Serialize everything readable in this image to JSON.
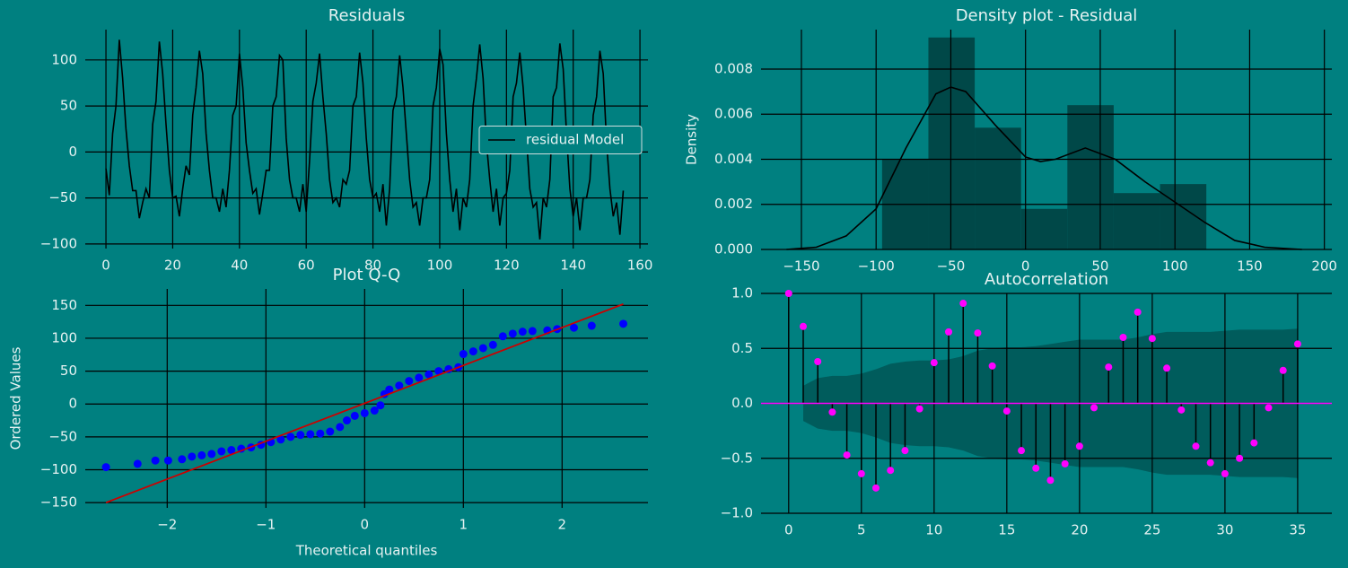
{
  "chart_data": [
    {
      "type": "line",
      "title": "Residuals",
      "x": [
        0,
        1,
        2,
        3,
        4,
        5,
        6,
        7,
        8,
        9,
        10,
        11,
        12,
        13,
        14,
        15,
        16,
        17,
        18,
        19,
        20,
        21,
        22,
        23,
        24,
        25,
        26,
        27,
        28,
        29,
        30,
        31,
        32,
        33,
        34,
        35,
        36,
        37,
        38,
        39,
        40,
        41,
        42,
        43,
        44,
        45,
        46,
        47,
        48,
        49,
        50,
        51,
        52,
        53,
        54,
        55,
        56,
        57,
        58,
        59,
        60,
        61,
        62,
        63,
        64,
        65,
        66,
        67,
        68,
        69,
        70,
        71,
        72,
        73,
        74,
        75,
        76,
        77,
        78,
        79,
        80,
        81,
        82,
        83,
        84,
        85,
        86,
        87,
        88,
        89,
        90,
        91,
        92,
        93,
        94,
        95,
        96,
        97,
        98,
        99,
        100,
        101,
        102,
        103,
        104,
        105,
        106,
        107,
        108,
        109,
        110,
        111,
        112,
        113,
        114,
        115,
        116,
        117,
        118,
        119,
        120,
        121,
        122,
        123,
        124,
        125,
        126,
        127,
        128,
        129,
        130,
        131,
        132,
        133,
        134,
        135,
        136,
        137,
        138,
        139,
        140,
        141,
        142,
        143,
        144,
        145,
        146,
        147,
        148,
        149,
        150,
        151,
        152,
        153,
        154,
        155
      ],
      "series": [
        {
          "name": "residual Model",
          "color": "#000000",
          "values": [
            -18,
            -47,
            20,
            50,
            122,
            80,
            25,
            -15,
            -42,
            -42,
            -72,
            -55,
            -40,
            -50,
            30,
            55,
            120,
            85,
            30,
            -20,
            -50,
            -48,
            -70,
            -40,
            -15,
            -25,
            40,
            70,
            110,
            85,
            20,
            -20,
            -50,
            -50,
            -65,
            -40,
            -60,
            -20,
            40,
            50,
            107,
            70,
            10,
            -20,
            -45,
            -40,
            -68,
            -45,
            -20,
            -20,
            50,
            60,
            105,
            100,
            15,
            -30,
            -50,
            -50,
            -65,
            -35,
            -65,
            -10,
            55,
            75,
            107,
            60,
            20,
            -30,
            -55,
            -50,
            -60,
            -30,
            -35,
            -20,
            50,
            60,
            108,
            75,
            15,
            -30,
            -50,
            -45,
            -65,
            -35,
            -80,
            -40,
            45,
            60,
            105,
            70,
            20,
            -30,
            -60,
            -55,
            -80,
            -50,
            -50,
            -30,
            50,
            70,
            112,
            95,
            20,
            -30,
            -65,
            -40,
            -85,
            -50,
            -60,
            -30,
            50,
            80,
            117,
            80,
            10,
            -30,
            -65,
            -40,
            -80,
            -50,
            -45,
            -20,
            60,
            75,
            108,
            70,
            15,
            -40,
            -60,
            -55,
            -95,
            -50,
            -60,
            -30,
            60,
            70,
            118,
            90,
            20,
            -40,
            -70,
            -50,
            -85,
            -50,
            -50,
            -30,
            40,
            60,
            110,
            85,
            10,
            -40,
            -70,
            -55,
            -90,
            -42
          ]
        }
      ],
      "xlim": [
        -6.2,
        162.4
      ],
      "ylim": [
        -105,
        133
      ],
      "xticks": [
        0,
        20,
        40,
        60,
        80,
        100,
        120,
        140,
        160
      ],
      "yticks": [
        {
          "value": -100,
          "label": "−100"
        },
        {
          "value": -50,
          "label": "−50"
        },
        0,
        50,
        100
      ],
      "grid": true,
      "legend": "center right"
    },
    {
      "type": "histogram",
      "title": "Density plot - Residual",
      "ylabel": "Density",
      "bins": [
        -96,
        -65,
        -34,
        -3,
        28,
        59,
        90,
        121
      ],
      "values": [
        0.004,
        0.0094,
        0.0054,
        0.0018,
        0.0064,
        0.0025,
        0.0029
      ],
      "color": "#004848",
      "kde": {
        "color": "#000000",
        "x": [
          -160,
          -140,
          -120,
          -100,
          -80,
          -60,
          -50,
          -40,
          -20,
          0,
          10,
          20,
          40,
          60,
          80,
          100,
          120,
          140,
          160,
          185
        ],
        "values": [
          0,
          0.0001,
          0.0006,
          0.0018,
          0.0045,
          0.0069,
          0.0072,
          0.007,
          0.0055,
          0.0041,
          0.0039,
          0.004,
          0.0045,
          0.004,
          0.003,
          0.0021,
          0.0012,
          0.0004,
          0.0001,
          0
        ]
      },
      "xlim": [
        -177,
        205
      ],
      "ylim": [
        0,
        0.00975
      ],
      "xticks": [
        {
          "value": -150,
          "label": "−150"
        },
        {
          "value": -100,
          "label": "−100"
        },
        {
          "value": -50,
          "label": "−50"
        },
        0,
        50,
        100,
        150,
        200
      ],
      "yticks": [
        {
          "value": 0,
          "label": "0.000"
        },
        {
          "value": 0.002,
          "label": "0.002"
        },
        {
          "value": 0.004,
          "label": "0.004"
        },
        {
          "value": 0.006,
          "label": "0.006"
        },
        {
          "value": 0.008,
          "label": "0.008"
        }
      ],
      "grid": true
    },
    {
      "type": "scatter",
      "title": "Plot Q-Q",
      "xlabel": "Theoretical quantiles",
      "ylabel": "Ordered Values",
      "points": {
        "color": "#0000ff",
        "x": [
          -2.62,
          -2.3,
          -2.12,
          -1.99,
          -1.85,
          -1.75,
          -1.65,
          -1.55,
          -1.45,
          -1.35,
          -1.25,
          -1.15,
          -1.05,
          -0.95,
          -0.85,
          -0.75,
          -0.65,
          -0.55,
          -0.45,
          -0.35,
          -0.25,
          -0.18,
          -0.1,
          0,
          0.1,
          0.16,
          0.2,
          0.25,
          0.35,
          0.45,
          0.55,
          0.65,
          0.75,
          0.85,
          0.95,
          1.0,
          1.1,
          1.2,
          1.3,
          1.4,
          1.5,
          1.6,
          1.7,
          1.85,
          1.95,
          2.12,
          2.3,
          2.62
        ],
        "values": [
          -96,
          -91,
          -86,
          -86,
          -84,
          -80,
          -78,
          -76,
          -72,
          -70,
          -68,
          -66,
          -62,
          -58,
          -54,
          -50,
          -47,
          -46,
          -45,
          -42,
          -35,
          -25,
          -18,
          -14,
          -10,
          -2,
          15,
          22,
          28,
          35,
          40,
          45,
          50,
          53,
          56,
          76,
          80,
          85,
          90,
          103,
          107,
          110,
          111,
          112,
          114,
          116,
          119,
          122
        ]
      },
      "fit_line": {
        "color": "#cc0000",
        "x": [
          -2.62,
          2.62
        ],
        "values": [
          -150,
          152
        ]
      },
      "xlim": [
        -2.83,
        2.87
      ],
      "ylim": [
        -158,
        175
      ],
      "xticks": [
        {
          "value": -2,
          "label": "−2"
        },
        {
          "value": -1,
          "label": "−1"
        },
        0,
        1,
        2
      ],
      "yticks": [
        {
          "value": -150,
          "label": "−150"
        },
        {
          "value": -100,
          "label": "−100"
        },
        {
          "value": -50,
          "label": "−50"
        },
        0,
        50,
        100,
        150
      ],
      "grid": true
    },
    {
      "type": "stem",
      "title": "Autocorrelation",
      "x": [
        0,
        1,
        2,
        3,
        4,
        5,
        6,
        7,
        8,
        9,
        10,
        11,
        12,
        13,
        14,
        15,
        16,
        17,
        18,
        19,
        20,
        21,
        22,
        23,
        24,
        25,
        26,
        27,
        28,
        29,
        30,
        31,
        32,
        33,
        34,
        35
      ],
      "values": [
        1.0,
        0.7,
        0.38,
        -0.08,
        -0.47,
        -0.64,
        -0.77,
        -0.61,
        -0.43,
        -0.05,
        0.37,
        0.65,
        0.91,
        0.64,
        0.34,
        -0.07,
        -0.43,
        -0.59,
        -0.7,
        -0.55,
        -0.39,
        -0.04,
        0.33,
        0.6,
        0.83,
        0.59,
        0.32,
        -0.06,
        -0.39,
        -0.54,
        -0.64,
        -0.5,
        -0.36,
        -0.04,
        0.3,
        0.54
      ],
      "band_upper": [
        null,
        0.16,
        0.23,
        0.25,
        0.25,
        0.27,
        0.31,
        0.36,
        0.38,
        0.39,
        0.39,
        0.4,
        0.43,
        0.48,
        0.5,
        0.51,
        0.51,
        0.52,
        0.54,
        0.56,
        0.58,
        0.58,
        0.58,
        0.58,
        0.6,
        0.63,
        0.65,
        0.65,
        0.65,
        0.65,
        0.66,
        0.67,
        0.67,
        0.67,
        0.67,
        0.68
      ],
      "band_lower": [
        null,
        -0.16,
        -0.23,
        -0.25,
        -0.25,
        -0.27,
        -0.31,
        -0.36,
        -0.38,
        -0.39,
        -0.39,
        -0.4,
        -0.43,
        -0.48,
        -0.5,
        -0.51,
        -0.51,
        -0.52,
        -0.54,
        -0.56,
        -0.58,
        -0.58,
        -0.58,
        -0.58,
        -0.6,
        -0.63,
        -0.65,
        -0.65,
        -0.65,
        -0.65,
        -0.66,
        -0.67,
        -0.67,
        -0.67,
        -0.67,
        -0.68
      ],
      "band_color": "#005c5c",
      "stem_color": "#000000",
      "marker_color": "#ff00ff",
      "zero_line_color": "#ff00ff",
      "xlim": [
        -1.9,
        37.35
      ],
      "ylim": [
        -1,
        1
      ],
      "xticks": [
        0,
        5,
        10,
        15,
        20,
        25,
        30,
        35
      ],
      "yticks": [
        {
          "value": -1,
          "label": "−1.0"
        },
        {
          "value": -0.5,
          "label": "−0.5"
        },
        {
          "value": 0,
          "label": "0.0"
        },
        {
          "value": 0.5,
          "label": "0.5"
        },
        {
          "value": 1,
          "label": "1.0"
        }
      ],
      "grid": true
    }
  ]
}
